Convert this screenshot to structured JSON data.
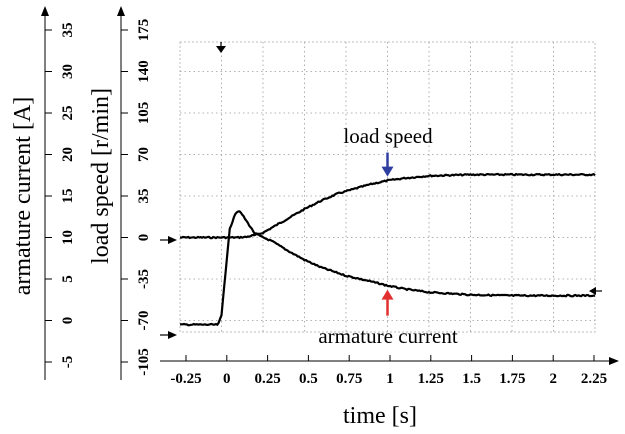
{
  "chart_data": {
    "type": "line",
    "xlabel": "time [s]",
    "ylabel_current": "armature current [A]",
    "ylabel_speed": "load speed [r/min]",
    "xlim": [
      -0.25,
      2.25
    ],
    "x_ticks": [
      "-0.25",
      "0",
      "0.25",
      "0.5",
      "0.75",
      "1",
      "1.25",
      "1.5",
      "1.75",
      "2",
      "2.25"
    ],
    "current_axis": {
      "ylim": [
        -5,
        35
      ],
      "ticks": [
        "-5",
        "0",
        "5",
        "10",
        "15",
        "20",
        "25",
        "30",
        "35"
      ]
    },
    "speed_axis": {
      "ylim": [
        -105,
        175
      ],
      "ticks": [
        "-105",
        "-70",
        "-35",
        "0",
        "35",
        "70",
        "105",
        "140",
        "175"
      ]
    },
    "grid": true,
    "series": [
      {
        "name": "load speed",
        "axis": "speed",
        "x": [
          -0.25,
          0,
          0.05,
          0.1,
          0.15,
          0.2,
          0.25,
          0.3,
          0.4,
          0.5,
          0.6,
          0.7,
          0.8,
          0.9,
          1.0,
          1.1,
          1.25,
          1.5,
          1.75,
          2.0,
          2.25
        ],
        "y": [
          0,
          0,
          0,
          0,
          0.5,
          2,
          4,
          8,
          16,
          24,
          31,
          37,
          41,
          45,
          48,
          50,
          52,
          53,
          53,
          53,
          53
        ]
      },
      {
        "name": "armature current",
        "axis": "current",
        "x": [
          -0.25,
          -0.02,
          0.0,
          0.02,
          0.05,
          0.08,
          0.1,
          0.12,
          0.15,
          0.2,
          0.25,
          0.3,
          0.4,
          0.5,
          0.6,
          0.75,
          0.9,
          1.0,
          1.1,
          1.25,
          1.5,
          1.75,
          2.0,
          2.25
        ],
        "y": [
          -0.5,
          -0.5,
          0.6,
          5,
          11,
          12.8,
          13.2,
          12.9,
          12,
          10.5,
          10,
          9.6,
          8.4,
          7.3,
          6.4,
          5.4,
          4.7,
          4.2,
          3.8,
          3.4,
          3.1,
          3.0,
          3.0,
          3.0
        ]
      }
    ],
    "annotations": [
      {
        "text": "load speed",
        "arrow_color": "#2f3fa0",
        "x": 1.0,
        "y": 48,
        "axis": "speed"
      },
      {
        "text": "armature current",
        "arrow_color": "#e23030",
        "x": 1.0,
        "y": 4.2,
        "axis": "current"
      }
    ]
  }
}
